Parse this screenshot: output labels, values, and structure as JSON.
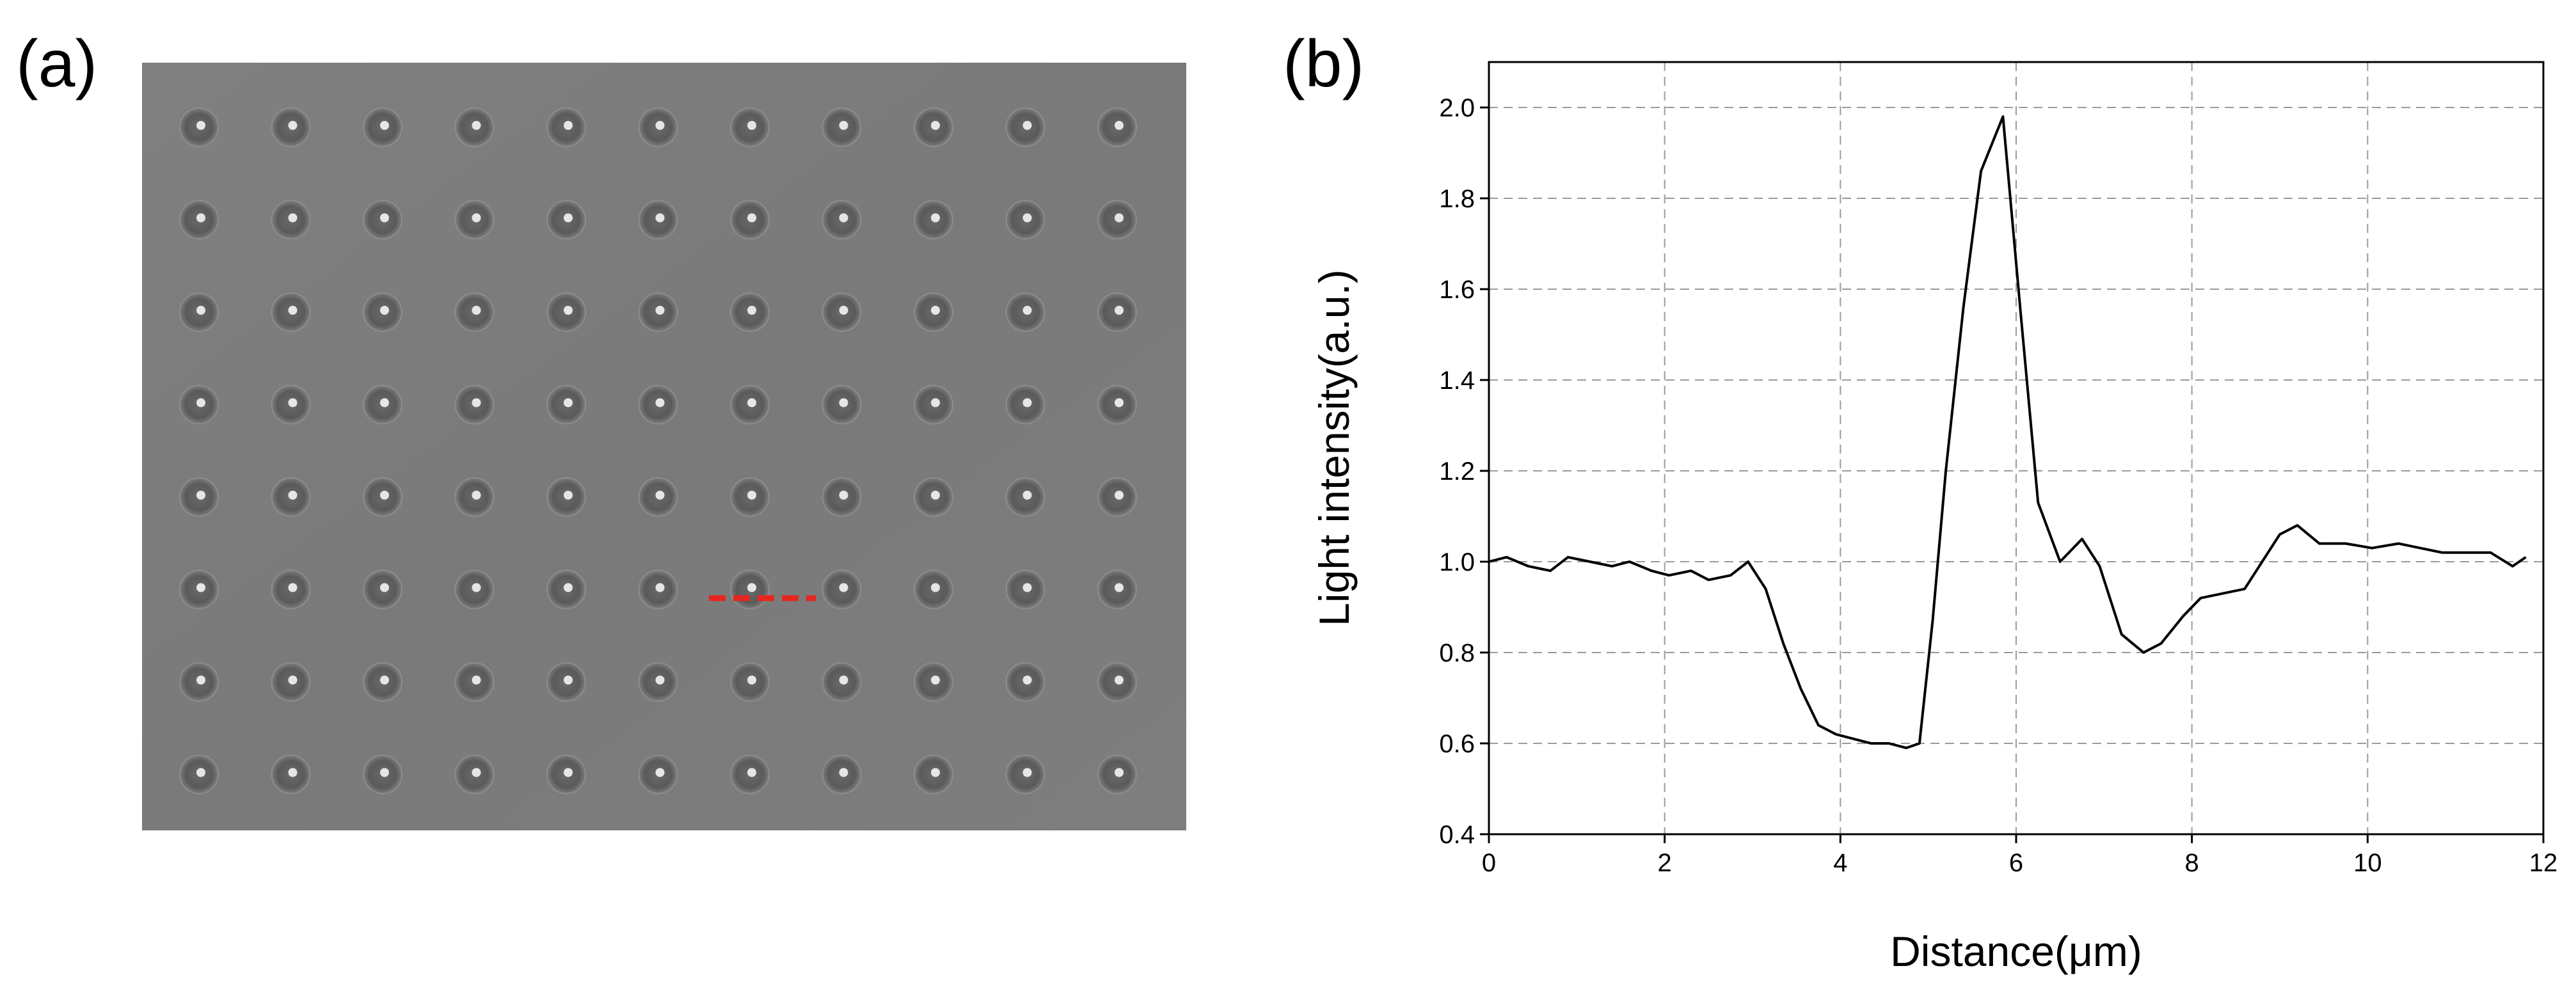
{
  "panel_a": {
    "label": "(a)",
    "grid": {
      "rows": 8,
      "cols": 11
    },
    "colors": {
      "background": "#7d7d7d",
      "marker": "#e8251f"
    }
  },
  "panel_b": {
    "label": "(b)"
  },
  "chart_data": {
    "type": "line",
    "title": "",
    "xlabel": "Distance(μm)",
    "ylabel": "Light intensity(a.u.)",
    "xlim": [
      0,
      12
    ],
    "ylim": [
      0.4,
      2.1
    ],
    "xticks": [
      0,
      2,
      4,
      6,
      8,
      10,
      12
    ],
    "yticks": [
      0.4,
      0.6,
      0.8,
      1.0,
      1.2,
      1.4,
      1.6,
      1.8,
      2.0
    ],
    "xtick_labels": [
      "0",
      "2",
      "4",
      "6",
      "8",
      "10",
      "12"
    ],
    "ytick_labels": [
      "0.4",
      "0.6",
      "0.8",
      "1.0",
      "1.2",
      "1.4",
      "1.6",
      "1.8",
      "2.0"
    ],
    "grid": true,
    "line_color": "#000000",
    "series": [
      {
        "x": [
          0,
          0.2,
          0.45,
          0.7,
          0.9,
          1.15,
          1.4,
          1.6,
          1.85,
          2.05,
          2.3,
          2.5,
          2.75,
          2.95,
          3.15,
          3.35,
          3.55,
          3.75,
          3.95,
          4.15,
          4.35,
          4.55,
          4.75,
          4.9,
          5.05,
          5.2,
          5.4,
          5.6,
          5.85,
          6.05,
          6.25,
          6.5,
          6.75,
          6.95,
          7.2,
          7.45,
          7.65,
          7.9,
          8.1,
          8.35,
          8.6,
          8.8,
          9.0,
          9.2,
          9.45,
          9.75,
          10.05,
          10.35,
          10.6,
          10.85,
          11.1,
          11.4,
          11.65,
          11.8
        ],
        "y": [
          1.0,
          1.01,
          0.99,
          0.98,
          1.01,
          1.0,
          0.99,
          1.0,
          0.98,
          0.97,
          0.98,
          0.96,
          0.97,
          1.0,
          0.94,
          0.82,
          0.72,
          0.64,
          0.62,
          0.61,
          0.6,
          0.6,
          0.59,
          0.6,
          0.87,
          1.2,
          1.56,
          1.86,
          1.98,
          1.55,
          1.13,
          1.0,
          1.05,
          0.99,
          0.84,
          0.8,
          0.82,
          0.88,
          0.92,
          0.93,
          0.94,
          1.0,
          1.06,
          1.08,
          1.04,
          1.04,
          1.03,
          1.04,
          1.03,
          1.02,
          1.02,
          1.02,
          0.99,
          1.01
        ]
      }
    ]
  }
}
